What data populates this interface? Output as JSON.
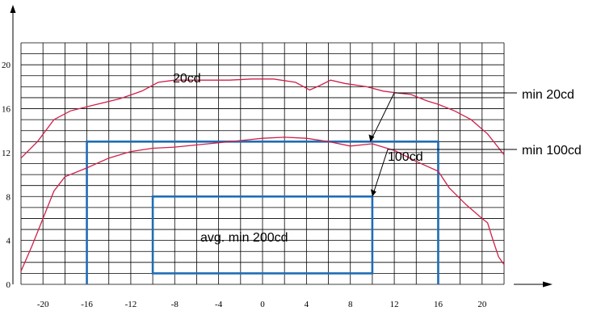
{
  "chart_data": {
    "type": "line",
    "title": "",
    "xlabel": "",
    "ylabel": "",
    "xlim": [
      -22,
      22
    ],
    "ylim": [
      0,
      22
    ],
    "x_ticks": [
      -20,
      -16,
      -12,
      -8,
      -4,
      0,
      4,
      8,
      12,
      16,
      20
    ],
    "y_ticks": [
      0,
      4,
      8,
      12,
      16,
      20
    ],
    "grid": true,
    "series": [
      {
        "name": "20cd",
        "color": "#d0204a",
        "points": [
          [
            -22,
            11.5
          ],
          [
            -20.5,
            13
          ],
          [
            -19,
            15
          ],
          [
            -17.5,
            15.8
          ],
          [
            -15.5,
            16.3
          ],
          [
            -13,
            16.9
          ],
          [
            -11,
            17.6
          ],
          [
            -9.5,
            18.4
          ],
          [
            -8,
            18.6
          ],
          [
            -6.5,
            18.6
          ],
          [
            -5,
            18.6
          ],
          [
            -3,
            18.6
          ],
          [
            -1,
            18.7
          ],
          [
            1,
            18.7
          ],
          [
            3,
            18.4
          ],
          [
            4.3,
            17.7
          ],
          [
            5.2,
            18.1
          ],
          [
            6.2,
            18.6
          ],
          [
            7.5,
            18.3
          ],
          [
            9.5,
            18.0
          ],
          [
            11,
            17.6
          ],
          [
            12.5,
            17.4
          ],
          [
            13.5,
            17.3
          ],
          [
            15,
            16.7
          ],
          [
            16,
            16.4
          ],
          [
            17.5,
            15.8
          ],
          [
            19,
            15.0
          ],
          [
            20.5,
            13.7
          ],
          [
            22,
            11.8
          ]
        ]
      },
      {
        "name": "100cd",
        "color": "#d0204a",
        "points": [
          [
            -22,
            1.2
          ],
          [
            -21,
            3.5
          ],
          [
            -20,
            6
          ],
          [
            -19,
            8.5
          ],
          [
            -18,
            9.8
          ],
          [
            -16,
            10.6
          ],
          [
            -14,
            11.5
          ],
          [
            -12,
            12.1
          ],
          [
            -10,
            12.4
          ],
          [
            -8,
            12.5
          ],
          [
            -6,
            12.7
          ],
          [
            -4,
            12.9
          ],
          [
            -2,
            13.1
          ],
          [
            0,
            13.3
          ],
          [
            2,
            13.4
          ],
          [
            4,
            13.3
          ],
          [
            6,
            13.0
          ],
          [
            8,
            12.6
          ],
          [
            10,
            12.8
          ],
          [
            12,
            12.2
          ],
          [
            14,
            11.2
          ],
          [
            16,
            10.3
          ],
          [
            17,
            8.8
          ],
          [
            18.5,
            7.3
          ],
          [
            20,
            6
          ],
          [
            20.5,
            5.6
          ],
          [
            21,
            4.0
          ],
          [
            21.5,
            2.5
          ],
          [
            22,
            1.8
          ]
        ]
      }
    ],
    "zones": [
      {
        "name": "min 20cd",
        "x": [
          -16,
          16
        ],
        "y": [
          0,
          13
        ]
      },
      {
        "name": "avg. min 200cd",
        "x": [
          -10,
          10
        ],
        "y": [
          1,
          8
        ]
      }
    ],
    "zone_color": "#1f6db4",
    "labels": {
      "curve_20": "20cd",
      "curve_100": "100cd",
      "min20": "min 20cd",
      "min100": "min 100cd",
      "avg200": "avg. min 200cd"
    }
  }
}
